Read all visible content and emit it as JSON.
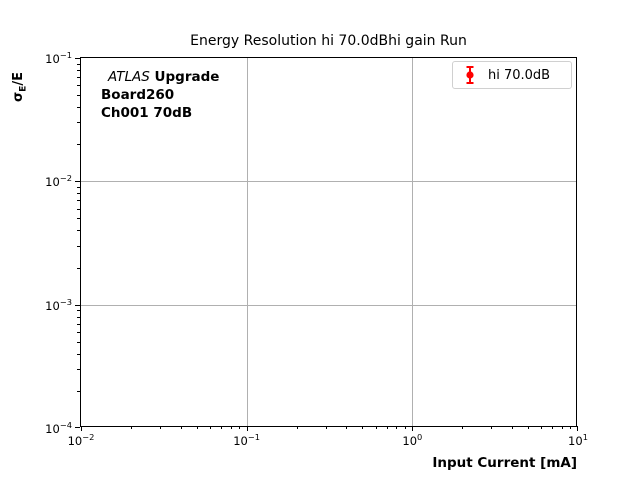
{
  "figure": {
    "title": "Energy Resolution hi 70.0dBhi gain Run",
    "background_color": "#ffffff"
  },
  "chart_data": {
    "type": "scatter",
    "subtype": "errorbar",
    "title": "Energy Resolution hi 70.0dBhi gain Run",
    "xlabel": "Input Current [mA]",
    "ylabel": "sigma_E/E",
    "xscale": "log",
    "yscale": "log",
    "xlim": [
      0.01,
      10
    ],
    "ylim": [
      0.0001,
      0.1
    ],
    "grid": "major gridlines only, light gray",
    "legend_position": "upper right",
    "series": [
      {
        "name": "hi 70.0dB",
        "color": "#ff0000",
        "marker": "circle-with-errorbar",
        "x": [],
        "y": [],
        "note": "no data points visible in plot area"
      }
    ],
    "annotations": [
      "ATLAS Upgrade",
      "Board260",
      "Ch001 70dB"
    ]
  },
  "axes": {
    "x": {
      "label": "Input Current [mA]",
      "tick_base": "10",
      "tick_exponents": [
        -2,
        -1,
        0,
        1
      ]
    },
    "y": {
      "label_sigma": "σ",
      "label_sub": "E",
      "label_rest": "/E",
      "tick_base": "10",
      "tick_exponents": [
        -1,
        -2,
        -3,
        -4
      ]
    }
  },
  "annotation": {
    "line1_italic": "ATLAS",
    "line1_bold": " Upgrade",
    "line2": "Board260",
    "line3": "Ch001 70dB"
  },
  "legend": {
    "label": "hi 70.0dB",
    "marker_color": "#ff0000"
  },
  "colors": {
    "series": "#ff0000",
    "grid": "#b0b0b0",
    "spine": "#000000",
    "legend_border": "#d0d0d0",
    "text": "#000000"
  }
}
